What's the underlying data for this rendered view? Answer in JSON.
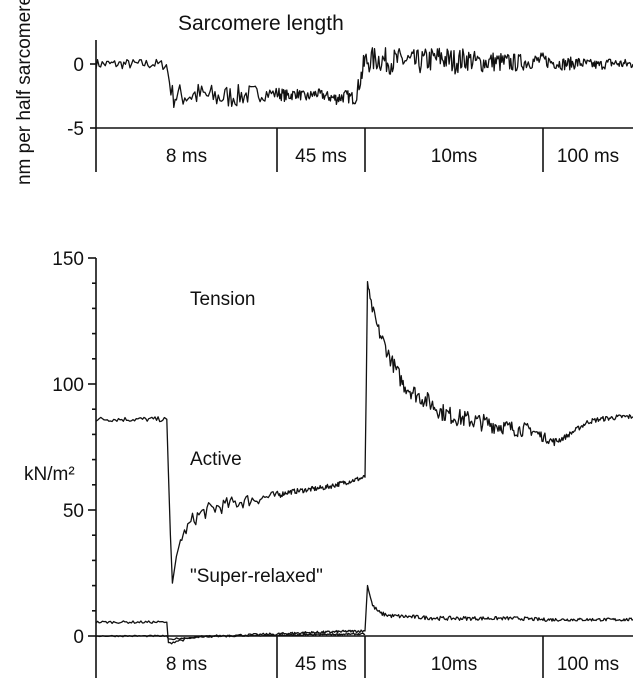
{
  "chart_data": [
    {
      "type": "line",
      "title": "Sarcomere length",
      "ylabel": "nm per half sarcomere",
      "ylim": [
        -5,
        2
      ],
      "yticks": [
        0,
        -5
      ],
      "ytick_labels": [
        "0",
        "-5"
      ],
      "time_segments": [
        "8 ms",
        "45 ms",
        "10ms",
        "100 ms"
      ],
      "series": [
        {
          "x": [
            0,
            0.05,
            0.1,
            0.15,
            0.175,
            0.19,
            0.2,
            0.25,
            0.3,
            0.35,
            0.4,
            0.44,
            0.46,
            0.48,
            0.5,
            0.55,
            0.6,
            0.65,
            0.7,
            0.75,
            0.8,
            0.85,
            0.9,
            0.95,
            1.0,
            1.05,
            1.1,
            1.15,
            1.2,
            1.25,
            1.3,
            1.35,
            1.4,
            1.45,
            1.5,
            1.55,
            1.6,
            1.65,
            1.7,
            1.75,
            1.8,
            1.85,
            1.9,
            1.95,
            2.0
          ],
          "y": [
            0,
            0,
            0,
            0,
            -0.1,
            -2.5,
            -2.5,
            -2.4,
            -2.6,
            -2.5,
            -2.3,
            -2.3,
            -2.3,
            -2.4,
            -2.5,
            -2.3,
            -2.6,
            -2.3,
            -2.5,
            -2.7,
            -2.5,
            -2.7,
            0.2,
            0.4,
            0.2,
            0.3,
            0.1,
            0.3,
            0.5,
            0.2,
            0.4,
            0.1,
            0.2,
            0.1,
            0.1,
            0.2,
            0.3,
            0.1,
            0.0,
            0.1,
            0.0,
            -0.1,
            0.1,
            0.0,
            0.0
          ],
          "noise": [
            0.4,
            0.4,
            0.4,
            0.4,
            0.4,
            1.0,
            1.0,
            1.0,
            1.0,
            0.9,
            0.7,
            0.5,
            0.5,
            0.5,
            0.5,
            0.4,
            0.4,
            0.4,
            0.4,
            0.5,
            0.5,
            0.5,
            1.0,
            1.0,
            1.0,
            1.0,
            1.0,
            1.0,
            1.0,
            1.0,
            0.9,
            0.8,
            0.8,
            0.8,
            0.7,
            0.6,
            0.6,
            0.5,
            0.5,
            0.5,
            0.4,
            0.4,
            0.4,
            0.4,
            0.4
          ]
        }
      ]
    },
    {
      "type": "line",
      "title": "",
      "ylabel": "kN/m²",
      "ylim": [
        0,
        150
      ],
      "yticks": [
        0,
        50,
        100,
        150
      ],
      "ytick_labels": [
        "0",
        "50",
        "100",
        "150"
      ],
      "time_segments": [
        "8 ms",
        "45 ms",
        "10ms",
        "100 ms"
      ],
      "annotations": {
        "tension": "Tension",
        "active": "Active",
        "super_relaxed": "\"Super-relaxed\""
      },
      "series": [
        {
          "name": "Active",
          "x": [
            0,
            0.1,
            0.17,
            0.176,
            0.18,
            0.185,
            0.19,
            0.2,
            0.21,
            0.22,
            0.24,
            0.26,
            0.28,
            0.3,
            0.35,
            0.4,
            0.44,
            0.46,
            0.48,
            0.5,
            0.55,
            0.6,
            0.65,
            0.7,
            0.75,
            0.8,
            0.85,
            0.9,
            0.905,
            0.91,
            0.92,
            0.95,
            1.0,
            1.05,
            1.1,
            1.15,
            1.2,
            1.25,
            1.3,
            1.35,
            1.4,
            1.45,
            1.5,
            1.55,
            1.6,
            1.65,
            1.7,
            1.75,
            1.8,
            1.85,
            1.9,
            1.95,
            2.0
          ],
          "y": [
            86,
            86,
            86,
            86,
            65,
            40,
            21,
            30,
            38,
            41,
            46,
            48.5,
            50,
            51,
            53,
            54.5,
            55.5,
            56,
            56.5,
            57,
            57.5,
            58,
            58.5,
            59,
            60,
            61,
            62,
            63,
            100,
            141,
            133,
            122,
            110,
            100,
            96,
            93,
            89,
            87,
            86,
            85,
            84,
            83,
            82,
            82,
            79,
            77,
            79,
            82,
            85,
            86,
            86.5,
            87,
            87
          ],
          "noise": [
            1,
            1,
            1,
            1,
            1,
            1,
            1,
            2,
            2,
            2,
            3,
            3,
            3,
            3,
            3,
            2.5,
            2,
            1.5,
            1,
            1,
            1,
            1,
            1,
            1,
            1,
            1,
            1,
            1,
            1,
            2,
            2,
            3,
            3,
            3.5,
            3.5,
            3.5,
            3.5,
            3.5,
            3.5,
            3.5,
            3.5,
            3,
            3,
            2.5,
            2,
            1.5,
            1,
            1,
            1,
            1,
            1,
            1,
            1
          ]
        },
        {
          "name": "\"Super-relaxed\"",
          "x": [
            0,
            0.1,
            0.17,
            0.176,
            0.18,
            0.2,
            0.25,
            0.3,
            0.4,
            0.5,
            0.6,
            0.7,
            0.8,
            0.9,
            0.905,
            0.91,
            0.93,
            0.96,
            1.0,
            1.1,
            1.2,
            1.3,
            1.4,
            1.5,
            1.6,
            1.7,
            1.8,
            1.9,
            2.0
          ],
          "y": [
            5.5,
            5.5,
            5.5,
            5.5,
            -3,
            -2,
            -0.5,
            0,
            0.5,
            1,
            1.3,
            1.5,
            1.8,
            2,
            12,
            20,
            12,
            9,
            8,
            7.5,
            7,
            7,
            7,
            7,
            6.5,
            6.5,
            6.5,
            6.5,
            6.5
          ],
          "noise": [
            0.5,
            0.5,
            0.5,
            0.5,
            0.5,
            0.5,
            0.5,
            0.5,
            0.5,
            0.5,
            0.5,
            0.5,
            0.5,
            0.5,
            0.5,
            0.5,
            0.8,
            0.8,
            0.8,
            0.8,
            0.8,
            0.8,
            0.7,
            0.7,
            0.7,
            0.6,
            0.6,
            0.6,
            0.6
          ]
        },
        {
          "name": "",
          "x": [
            0,
            0.17,
            0.176,
            0.18,
            0.2,
            0.3,
            0.5,
            0.7,
            0.9
          ],
          "y": [
            0,
            0,
            0,
            -1.5,
            -1,
            0,
            0.3,
            0.6,
            0.8
          ],
          "noise": [
            0.3,
            0.3,
            0.3,
            0.3,
            0.3,
            0.3,
            0.3,
            0.3,
            0.3
          ]
        }
      ]
    }
  ]
}
